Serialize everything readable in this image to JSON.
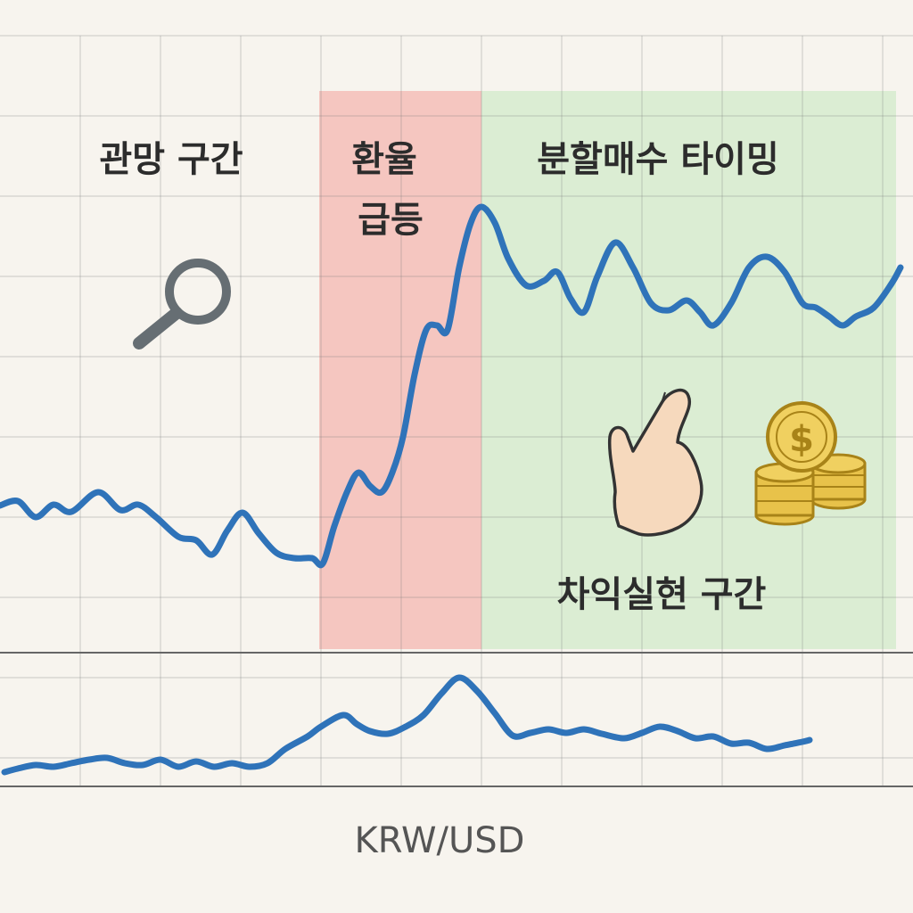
{
  "chart_data": {
    "type": "line",
    "title": "",
    "xlabel": "KRW/USD",
    "ylabel": "",
    "grid": true,
    "zones": [
      {
        "label": "관망 구간",
        "color": "#f7f4ee",
        "icon": "magnifier-icon"
      },
      {
        "label": "환율 급등",
        "color": "#f5c6c0",
        "icon": ""
      },
      {
        "label": "분할매수 타이밍",
        "color": "#dbedd3",
        "icon": "pointing-hand-icon"
      }
    ],
    "annotations": [
      {
        "label": "차익실현 구간",
        "icon": "coin-stack-icon"
      }
    ],
    "series": [
      {
        "values": [
          [
            0,
            567
          ],
          [
            20,
            562
          ],
          [
            40,
            580
          ],
          [
            60,
            566
          ],
          [
            80,
            574
          ],
          [
            110,
            552
          ],
          [
            135,
            572
          ],
          [
            155,
            566
          ],
          [
            175,
            580
          ],
          [
            200,
            602
          ],
          [
            220,
            606
          ],
          [
            238,
            622
          ],
          [
            255,
            595
          ],
          [
            272,
            575
          ],
          [
            290,
            598
          ],
          [
            310,
            620
          ],
          [
            330,
            626
          ],
          [
            350,
            626
          ],
          [
            362,
            632
          ],
          [
            375,
            590
          ],
          [
            390,
            550
          ],
          [
            402,
            530
          ],
          [
            415,
            545
          ],
          [
            428,
            552
          ],
          [
            440,
            530
          ],
          [
            452,
            490
          ],
          [
            465,
            420
          ],
          [
            478,
            370
          ],
          [
            490,
            365
          ],
          [
            502,
            370
          ],
          [
            515,
            300
          ],
          [
            528,
            250
          ],
          [
            540,
            232
          ],
          [
            555,
            250
          ],
          [
            570,
            290
          ],
          [
            590,
            320
          ],
          [
            610,
            315
          ],
          [
            625,
            305
          ],
          [
            640,
            335
          ],
          [
            655,
            350
          ],
          [
            670,
            310
          ],
          [
            690,
            272
          ],
          [
            710,
            300
          ],
          [
            730,
            340
          ],
          [
            750,
            348
          ],
          [
            770,
            337
          ],
          [
            785,
            350
          ],
          [
            800,
            365
          ],
          [
            820,
            340
          ],
          [
            840,
            300
          ],
          [
            860,
            288
          ],
          [
            880,
            305
          ],
          [
            900,
            340
          ],
          [
            915,
            345
          ],
          [
            930,
            355
          ],
          [
            945,
            365
          ],
          [
            960,
            355
          ],
          [
            980,
            345
          ],
          [
            1000,
            318
          ],
          [
            1010,
            300
          ]
        ]
      },
      {
        "values": [
          [
            5,
            866
          ],
          [
            20,
            862
          ],
          [
            40,
            858
          ],
          [
            60,
            860
          ],
          [
            80,
            856
          ],
          [
            100,
            852
          ],
          [
            120,
            850
          ],
          [
            140,
            856
          ],
          [
            160,
            858
          ],
          [
            180,
            852
          ],
          [
            200,
            860
          ],
          [
            220,
            854
          ],
          [
            240,
            860
          ],
          [
            260,
            856
          ],
          [
            280,
            860
          ],
          [
            300,
            856
          ],
          [
            320,
            840
          ],
          [
            345,
            826
          ],
          [
            360,
            815
          ],
          [
            385,
            802
          ],
          [
            400,
            812
          ],
          [
            415,
            820
          ],
          [
            435,
            823
          ],
          [
            455,
            815
          ],
          [
            475,
            802
          ],
          [
            495,
            778
          ],
          [
            515,
            760
          ],
          [
            535,
            775
          ],
          [
            555,
            800
          ],
          [
            575,
            825
          ],
          [
            595,
            822
          ],
          [
            615,
            818
          ],
          [
            635,
            822
          ],
          [
            655,
            818
          ],
          [
            675,
            823
          ],
          [
            700,
            828
          ],
          [
            720,
            822
          ],
          [
            740,
            815
          ],
          [
            760,
            820
          ],
          [
            780,
            828
          ],
          [
            800,
            826
          ],
          [
            820,
            834
          ],
          [
            840,
            833
          ],
          [
            860,
            840
          ],
          [
            880,
            836
          ],
          [
            900,
            832
          ],
          [
            908,
            830
          ]
        ]
      }
    ]
  }
}
